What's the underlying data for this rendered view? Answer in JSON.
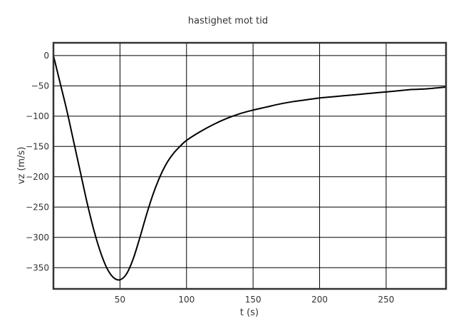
{
  "chart_data": {
    "type": "line",
    "title": "hastighet mot tid",
    "xlabel": "t (s)",
    "ylabel": "vz (m/s)",
    "xlim": [
      0,
      295
    ],
    "ylim": [
      -385,
      21
    ],
    "xticks": [
      50,
      100,
      150,
      200,
      250
    ],
    "xtick_labels": [
      "50",
      "100",
      "150",
      "200",
      "250"
    ],
    "yticks": [
      0,
      -50,
      -100,
      -150,
      -200,
      -250,
      -300,
      -350
    ],
    "ytick_labels": [
      "0",
      "−50",
      "−100",
      "−150",
      "−200",
      "−250",
      "−300",
      "−350"
    ],
    "grid": true,
    "colors": {
      "line": "#000000",
      "grid": "#000000",
      "frame": "#333333"
    },
    "series": [
      {
        "x": [
          0,
          5,
          10,
          15,
          20,
          25,
          30,
          35,
          40,
          45,
          50,
          55,
          60,
          65,
          70,
          75,
          80,
          85,
          90,
          95,
          100,
          110,
          120,
          130,
          140,
          150,
          160,
          170,
          180,
          190,
          200,
          210,
          220,
          230,
          240,
          250,
          260,
          270,
          280,
          295
        ],
        "y": [
          0,
          -45,
          -90,
          -140,
          -190,
          -240,
          -285,
          -322,
          -350,
          -366,
          -370,
          -360,
          -335,
          -300,
          -262,
          -228,
          -200,
          -178,
          -162,
          -150,
          -140,
          -126,
          -114,
          -104,
          -96,
          -90,
          -85,
          -80,
          -76,
          -73,
          -70,
          -68,
          -66,
          -64,
          -62,
          -60,
          -58,
          -56,
          -55,
          -52
        ]
      }
    ]
  }
}
